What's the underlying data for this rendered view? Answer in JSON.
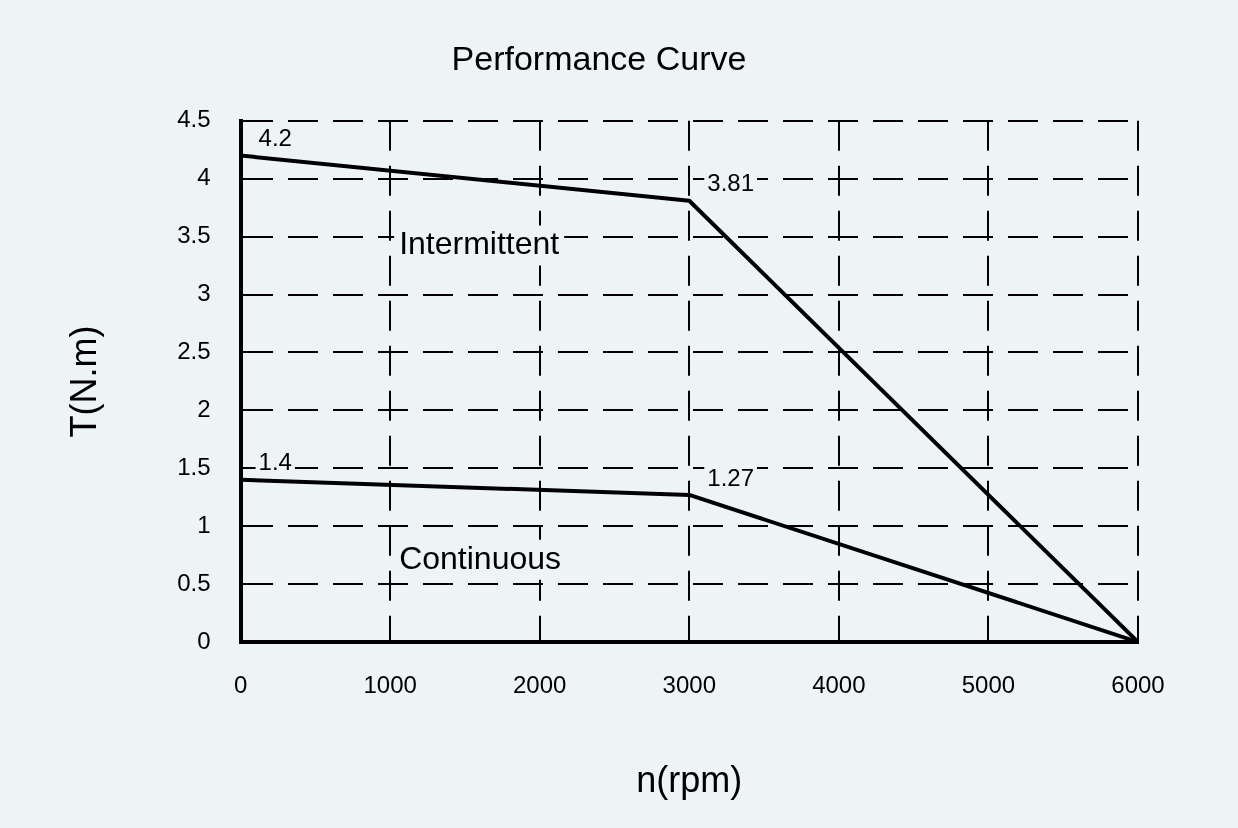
{
  "chart_data": {
    "type": "line",
    "title": "Performance Curve",
    "xlabel": "n(rpm)",
    "ylabel": "T(N.m)",
    "xlim": [
      0,
      6000
    ],
    "xticks": [
      0,
      1000,
      2000,
      3000,
      4000,
      5000,
      6000
    ],
    "ylim": [
      0,
      4.5
    ],
    "yticks": [
      0,
      0.5,
      1,
      1.5,
      2,
      2.5,
      3,
      3.5,
      4,
      4.5
    ],
    "grid": true,
    "legend": false,
    "marker": "none",
    "line_style": "solid",
    "series": [
      {
        "name": "Intermittent",
        "color": "#000000",
        "x": [
          0,
          3000,
          6000
        ],
        "values": [
          4.2,
          3.81,
          0
        ],
        "value_labels": [
          "4.2",
          "3.81",
          null
        ]
      },
      {
        "name": "Continuous",
        "color": "#000000",
        "x": [
          0,
          3000,
          6000
        ],
        "values": [
          1.4,
          1.27,
          0
        ],
        "value_labels": [
          "1.4",
          "1.27",
          null
        ]
      }
    ]
  }
}
